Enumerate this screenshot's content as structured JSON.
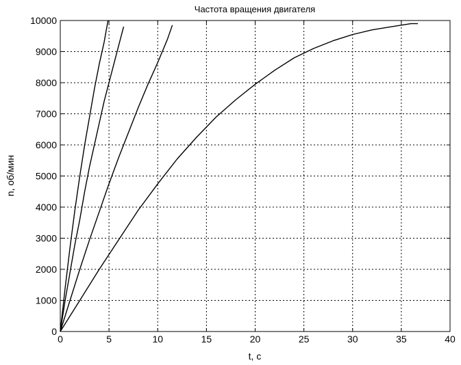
{
  "chart_data": {
    "type": "line",
    "title": "Частота вращения двигателя",
    "xlabel": "t, c",
    "ylabel": "n, об/мин",
    "xlim": [
      0,
      40
    ],
    "ylim": [
      0,
      10000
    ],
    "x_ticks": [
      0,
      5,
      10,
      15,
      20,
      25,
      30,
      35,
      40
    ],
    "y_ticks": [
      0,
      1000,
      2000,
      3000,
      4000,
      5000,
      6000,
      7000,
      8000,
      9000,
      10000
    ],
    "grid": true,
    "line_color": "#000000",
    "series": [
      {
        "x": [
          0,
          0.5,
          1,
          1.5,
          2,
          2.5,
          3,
          3.5,
          4,
          4.5,
          4.9
        ],
        "y": [
          0,
          1400,
          2700,
          3900,
          5000,
          6000,
          6900,
          7800,
          8600,
          9300,
          10000
        ]
      },
      {
        "x": [
          0,
          0.5,
          1,
          1.5,
          2,
          2.5,
          3,
          3.5,
          4,
          4.5,
          5,
          5.5,
          6,
          6.5
        ],
        "y": [
          0,
          1000,
          1900,
          2800,
          3600,
          4500,
          5300,
          6000,
          6700,
          7400,
          8000,
          8600,
          9200,
          9800
        ]
      },
      {
        "x": [
          0,
          1,
          2,
          3,
          4,
          5,
          6,
          7,
          8,
          9,
          10,
          11,
          11.5
        ],
        "y": [
          0,
          1000,
          2000,
          2950,
          3850,
          4750,
          5600,
          6400,
          7200,
          7950,
          8650,
          9400,
          9850
        ]
      },
      {
        "x": [
          0,
          2,
          4,
          6,
          8,
          10,
          12,
          14,
          16,
          18,
          20,
          22,
          24,
          26,
          28,
          30,
          32,
          34,
          36,
          36.7
        ],
        "y": [
          0,
          1000,
          2000,
          2950,
          3900,
          4750,
          5550,
          6250,
          6900,
          7450,
          7950,
          8400,
          8800,
          9100,
          9350,
          9550,
          9700,
          9800,
          9900,
          9900
        ]
      }
    ]
  }
}
